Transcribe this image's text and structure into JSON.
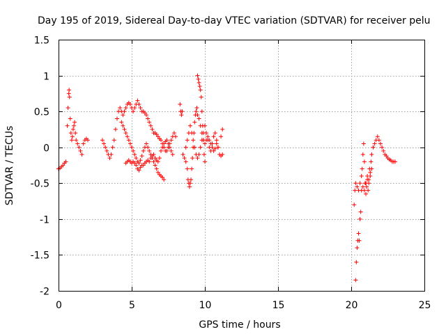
{
  "chart_data": {
    "type": "scatter",
    "title": "Day 195 of 2019, Sidereal Day-to-day VTEC variation (SDTVAR) for receiver pelu",
    "xlabel": "GPS time / hours",
    "ylabel": "SDTVAR / TECUs",
    "xlim": [
      0,
      25
    ],
    "ylim": [
      -2,
      1.5
    ],
    "xticks": [
      0,
      5,
      10,
      15,
      20,
      25
    ],
    "xtick_labels": [
      "0",
      "5",
      "10",
      "15",
      "20",
      "25"
    ],
    "yticks": [
      -2,
      -1.5,
      -1,
      -0.5,
      0,
      0.5,
      1,
      1.5
    ],
    "ytick_labels": [
      "-2",
      "-1.5",
      "-1",
      "-0.5",
      "0",
      "0.5",
      "1",
      "1.5"
    ],
    "grid": true,
    "marker": "plus",
    "color": "#ff0000",
    "series": [
      {
        "name": "SDTVAR",
        "segments": [
          {
            "t": [
              0.0,
              0.1,
              0.2,
              0.3,
              0.4,
              0.5
            ],
            "v": [
              -0.3,
              -0.29,
              -0.27,
              -0.25,
              -0.22,
              -0.2
            ]
          },
          {
            "t": [
              0.6,
              0.65,
              0.7,
              0.72,
              0.75,
              0.8,
              0.85,
              0.9,
              0.95,
              1.0,
              1.05,
              1.1,
              1.15,
              1.2,
              1.3,
              1.4,
              1.5,
              1.6,
              1.7,
              1.8,
              1.9,
              2.0
            ],
            "v": [
              0.3,
              0.55,
              0.75,
              0.8,
              0.7,
              0.4,
              0.2,
              0.1,
              0.15,
              0.25,
              0.3,
              0.35,
              0.2,
              0.1,
              0.05,
              0.0,
              -0.05,
              -0.1,
              0.05,
              0.1,
              0.12,
              0.1
            ]
          },
          {
            "t": [
              3.0,
              3.1,
              3.2,
              3.3,
              3.4,
              3.5,
              3.6,
              3.7,
              3.8,
              3.9,
              4.0,
              4.1,
              4.2,
              4.3,
              4.4,
              4.5,
              4.6,
              4.7,
              4.8,
              4.9,
              5.0,
              5.1,
              5.2,
              5.3,
              5.4,
              5.5,
              5.6,
              5.7,
              5.8,
              5.9,
              6.0,
              6.1,
              6.2,
              6.3,
              6.4,
              6.5,
              6.6,
              6.7,
              6.8,
              6.9,
              7.0,
              7.1,
              7.2,
              7.3,
              7.4,
              7.5,
              7.6,
              7.7,
              7.8,
              7.9,
              8.0
            ],
            "v": [
              0.1,
              0.05,
              0.0,
              -0.05,
              -0.1,
              -0.15,
              -0.1,
              0.0,
              0.1,
              0.25,
              0.4,
              0.5,
              0.55,
              0.5,
              0.45,
              0.5,
              0.55,
              0.6,
              0.62,
              0.6,
              0.55,
              0.5,
              0.55,
              0.6,
              0.65,
              0.6,
              0.55,
              0.5,
              0.5,
              0.48,
              0.45,
              0.4,
              0.35,
              0.3,
              0.25,
              0.2,
              0.2,
              0.18,
              0.15,
              0.12,
              0.1,
              0.05,
              0.0,
              -0.05,
              -0.05,
              0.0,
              0.05,
              0.1,
              0.15,
              0.2,
              0.15
            ]
          },
          {
            "t": [
              4.3,
              4.4,
              4.5,
              4.6,
              4.7,
              4.8,
              4.9,
              5.0,
              5.1,
              5.2,
              5.3,
              5.4,
              5.5,
              5.6,
              5.7,
              5.8,
              5.9,
              6.0,
              6.1,
              6.2,
              6.3,
              6.4,
              6.5,
              6.6,
              6.7,
              6.8,
              6.9,
              7.0,
              7.1,
              7.2
            ],
            "v": [
              0.35,
              0.3,
              0.25,
              0.2,
              0.15,
              0.1,
              0.05,
              0.0,
              -0.05,
              -0.1,
              -0.15,
              -0.2,
              -0.22,
              -0.18,
              -0.12,
              -0.05,
              0.0,
              0.05,
              0.0,
              -0.05,
              -0.1,
              -0.15,
              -0.2,
              -0.25,
              -0.3,
              -0.35,
              -0.38,
              -0.4,
              -0.42,
              -0.45
            ]
          },
          {
            "t": [
              4.6,
              4.7,
              4.8,
              4.9,
              5.0,
              5.1,
              5.2,
              5.3,
              5.4,
              5.5,
              5.6,
              5.7,
              5.8,
              5.9,
              6.0,
              6.1,
              6.2,
              6.3,
              6.4,
              6.5,
              6.6,
              6.7,
              6.8,
              6.9,
              7.0,
              7.1,
              7.2,
              7.3,
              7.4,
              7.5,
              7.6,
              7.7,
              7.8
            ],
            "v": [
              -0.22,
              -0.2,
              -0.18,
              -0.2,
              -0.22,
              -0.2,
              -0.22,
              -0.25,
              -0.3,
              -0.32,
              -0.28,
              -0.25,
              -0.25,
              -0.22,
              -0.2,
              -0.18,
              -0.2,
              -0.15,
              -0.12,
              -0.1,
              -0.15,
              -0.18,
              -0.2,
              -0.15,
              -0.05,
              0.0,
              0.05,
              0.08,
              0.1,
              0.05,
              0.0,
              -0.05,
              -0.1
            ]
          },
          {
            "t": [
              8.3,
              8.35,
              8.4,
              8.45,
              8.5,
              8.6,
              8.7,
              8.8,
              8.85,
              8.9,
              8.95,
              9.0,
              9.05,
              9.1,
              9.15,
              9.2,
              9.25,
              9.3,
              9.35,
              9.4,
              9.45,
              9.5,
              9.55,
              9.6,
              9.65,
              9.7,
              9.75,
              9.8,
              9.85,
              9.9,
              9.95,
              10.0
            ],
            "v": [
              0.6,
              0.5,
              0.45,
              0.5,
              -0.1,
              -0.15,
              -0.2,
              -0.3,
              -0.45,
              -0.5,
              -0.55,
              -0.5,
              -0.45,
              -0.3,
              -0.15,
              0.0,
              0.2,
              0.35,
              0.45,
              0.5,
              0.55,
              1.0,
              0.95,
              0.9,
              0.85,
              0.8,
              0.7,
              0.5,
              0.3,
              0.1,
              -0.1,
              -0.2
            ]
          },
          {
            "t": [
              8.7,
              8.8,
              8.9,
              9.0,
              9.1,
              9.2,
              9.3,
              9.4,
              9.5,
              9.6,
              9.7,
              9.8,
              9.9,
              10.0,
              10.1,
              10.2,
              10.3,
              10.4,
              10.5,
              10.6,
              10.7,
              10.8,
              10.9,
              11.0,
              11.1,
              11.2
            ],
            "v": [
              0.0,
              0.1,
              0.2,
              0.3,
              0.2,
              0.1,
              0.0,
              -0.1,
              -0.15,
              -0.1,
              0.0,
              0.1,
              0.2,
              0.3,
              0.2,
              0.1,
              0.0,
              -0.05,
              0.05,
              0.15,
              0.2,
              0.1,
              0.0,
              -0.1,
              0.15,
              0.25
            ]
          },
          {
            "t": [
              9.5,
              9.6,
              9.7,
              9.8,
              9.9,
              10.0,
              10.1,
              10.2,
              10.3,
              10.4,
              10.5,
              10.6,
              10.7,
              10.8,
              10.9,
              11.0,
              11.1,
              11.2
            ],
            "v": [
              0.45,
              0.4,
              0.3,
              0.2,
              0.1,
              0.05,
              0.1,
              0.15,
              0.1,
              0.05,
              0.0,
              -0.05,
              -0.02,
              0.05,
              0.0,
              -0.1,
              -0.12,
              -0.1
            ]
          },
          {
            "t": [
              20.2,
              20.25,
              20.3,
              20.35,
              20.4,
              20.45,
              20.5,
              20.55,
              20.6,
              20.65,
              20.7,
              20.75,
              20.8,
              20.85,
              20.9,
              20.95,
              21.0,
              21.05,
              21.1,
              21.15,
              21.2,
              21.25,
              21.3,
              21.35,
              21.4,
              21.5,
              21.6,
              21.7,
              21.8,
              21.9,
              22.0,
              22.1,
              22.2,
              22.3,
              22.4,
              22.5,
              22.6,
              22.7,
              22.8,
              22.9,
              23.0
            ],
            "v": [
              -0.8,
              -0.6,
              -1.85,
              -1.6,
              -1.4,
              -1.3,
              -1.2,
              -1.3,
              -1.0,
              -0.9,
              -0.6,
              -0.3,
              -0.1,
              0.05,
              -0.2,
              -0.5,
              -0.65,
              -0.55,
              -0.45,
              -0.6,
              -0.5,
              -0.3,
              -0.4,
              -0.2,
              -0.1,
              0.0,
              0.05,
              0.1,
              0.15,
              0.1,
              0.05,
              0.0,
              -0.05,
              -0.1,
              -0.12,
              -0.15,
              -0.17,
              -0.18,
              -0.2,
              -0.2,
              -0.2
            ]
          },
          {
            "t": [
              20.3,
              20.4,
              20.5,
              20.6,
              20.7,
              20.8,
              20.9,
              21.0,
              21.1,
              21.2,
              21.3,
              21.4
            ],
            "v": [
              -0.5,
              -0.55,
              -0.6,
              -0.5,
              -0.4,
              -0.55,
              -0.6,
              -0.5,
              -0.4,
              -0.45,
              -0.35,
              -0.3
            ]
          }
        ]
      }
    ]
  }
}
